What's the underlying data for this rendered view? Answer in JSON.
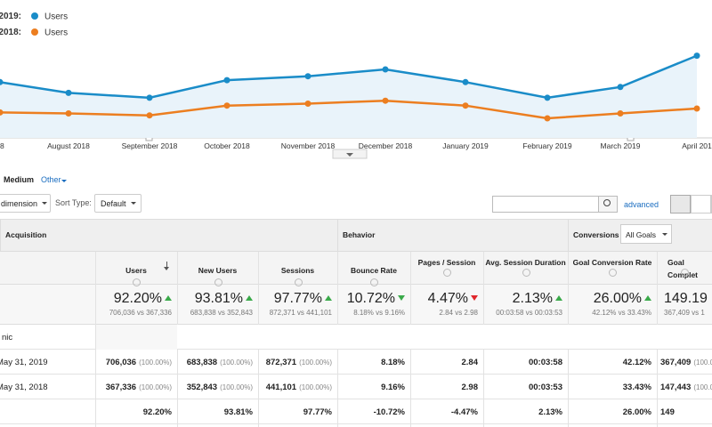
{
  "chart_data": {
    "type": "line",
    "categories": [
      "8",
      "August 2018",
      "September 2018",
      "October 2018",
      "November 2018",
      "December 2018",
      "January 2019",
      "February 2019",
      "March 2019",
      "April 201"
    ],
    "series": [
      {
        "period": "2019:",
        "name": "Users",
        "color": "#1a8cc8",
        "values": [
          57,
          46,
          41,
          59,
          63,
          70,
          57,
          41,
          52,
          84
        ]
      },
      {
        "period": "2018:",
        "name": "Users",
        "color": "#ec7e20",
        "values": [
          26,
          25,
          23,
          33,
          35,
          38,
          33,
          20,
          25,
          30
        ]
      }
    ],
    "ylim": [
      0,
      100
    ]
  },
  "tabs": [
    "Medium",
    "Other"
  ],
  "controls": {
    "dimension": "dimension",
    "sort_label": "Sort Type:",
    "sort_value": "Default",
    "advanced": "advanced"
  },
  "table": {
    "groups": [
      "Acquisition",
      "Behavior",
      "Conversions"
    ],
    "goal_select": "All Goals",
    "columns": [
      "Users",
      "New Users",
      "Sessions",
      "Bounce Rate",
      "Pages / Session",
      "Avg. Session Duration",
      "Goal Conversion Rate",
      "Goal Complet"
    ],
    "summary": [
      {
        "value": "92.20%",
        "trend": "up",
        "trend_color": "#3aaa4a",
        "compare": "706,036 vs 367,336"
      },
      {
        "value": "93.81%",
        "trend": "up",
        "trend_color": "#3aaa4a",
        "compare": "683,838 vs 352,843"
      },
      {
        "value": "97.77%",
        "trend": "up",
        "trend_color": "#3aaa4a",
        "compare": "872,371 vs 441,101"
      },
      {
        "value": "10.72%",
        "trend": "down",
        "trend_color": "#3aaa4a",
        "compare": "8.18% vs 9.16%"
      },
      {
        "value": "4.47%",
        "trend": "down",
        "trend_color": "#e0262b",
        "compare": "2.84 vs 2.98"
      },
      {
        "value": "2.13%",
        "trend": "up",
        "trend_color": "#3aaa4a",
        "compare": "00:03:58 vs 00:03:53"
      },
      {
        "value": "26.00%",
        "trend": "up",
        "trend_color": "#3aaa4a",
        "compare": "42.12% vs 33.43%"
      },
      {
        "value": "149.19",
        "compare": "367,409 vs 1"
      }
    ],
    "group_row": "nic",
    "rows": [
      {
        "label": "May 31, 2019",
        "cells": [
          {
            "value": "706,036",
            "share": "(100.00%)"
          },
          {
            "value": "683,838",
            "share": "(100.00%)"
          },
          {
            "value": "872,371",
            "share": "(100.00%)"
          },
          {
            "value": "8.18%"
          },
          {
            "value": "2.84"
          },
          {
            "value": "00:03:58"
          },
          {
            "value": "42.12%"
          },
          {
            "value": "367,409",
            "share": "(100.00"
          }
        ]
      },
      {
        "label": "May 31, 2018",
        "cells": [
          {
            "value": "367,336",
            "share": "(100.00%)"
          },
          {
            "value": "352,843",
            "share": "(100.00%)"
          },
          {
            "value": "441,101",
            "share": "(100.00%)"
          },
          {
            "value": "9.16%"
          },
          {
            "value": "2.98"
          },
          {
            "value": "00:03:53"
          },
          {
            "value": "33.43%"
          },
          {
            "value": "147,443",
            "share": "(100.00"
          }
        ]
      },
      {
        "bold": true,
        "cells": [
          {
            "value": "92.20%"
          },
          {
            "value": "93.81%"
          },
          {
            "value": "97.77%"
          },
          {
            "value": "-10.72%"
          },
          {
            "value": "-4.47%"
          },
          {
            "value": "2.13%"
          },
          {
            "value": "26.00%"
          },
          {
            "value": "149"
          }
        ]
      }
    ]
  }
}
